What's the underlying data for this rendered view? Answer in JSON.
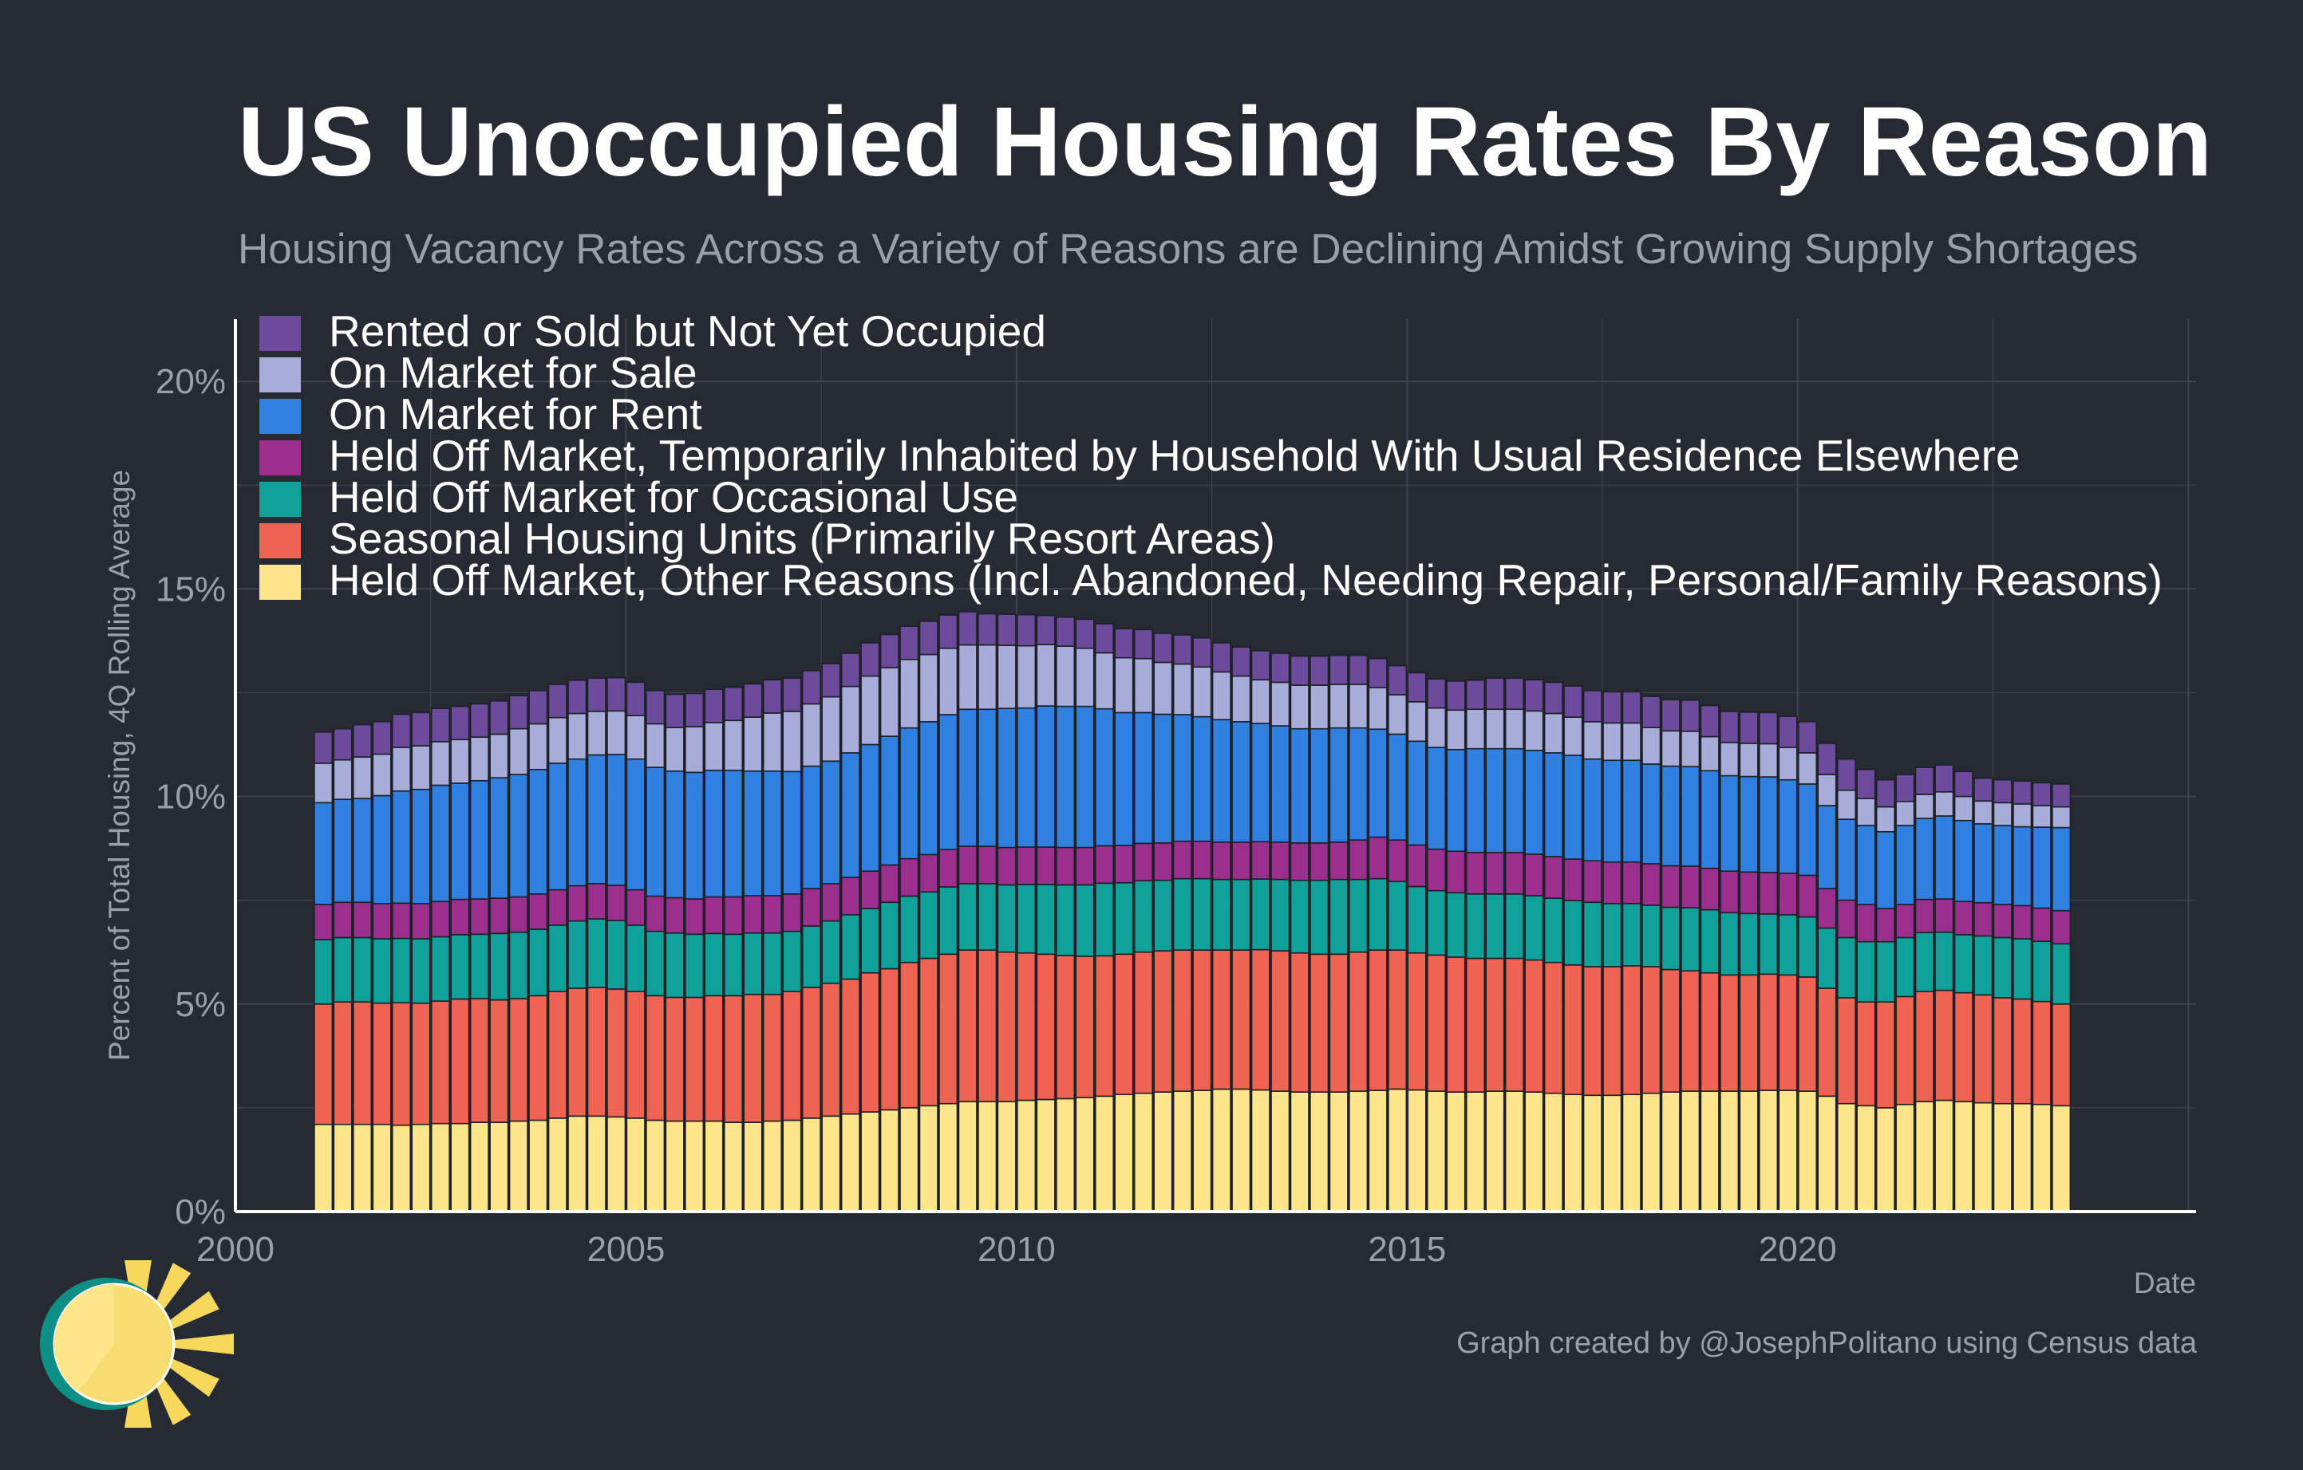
{
  "title": "US Unoccupied Housing Rates By Reason",
  "subtitle": "Housing Vacancy Rates Across a Variety of Reasons are Declining Amidst Growing Supply Shortages",
  "credit": "Graph created by @JosephPolitano using Census data",
  "colors": {
    "background": "#252a33",
    "grid": "#3e444e",
    "axis": "#ffffff",
    "muted_text": "#9aa0a8",
    "bar_outline": "#1c1f24"
  },
  "chart_data": {
    "type": "bar",
    "stacked": true,
    "frequency": "quarterly",
    "title": "US Unoccupied Housing Rates By Reason",
    "xlabel": "Date",
    "ylabel": "Percent of Total Housing, 4Q Rolling Average",
    "xlim": [
      2000,
      2025.1
    ],
    "ylim": [
      0,
      21.5
    ],
    "yticks": [
      "0%",
      "5%",
      "10%",
      "15%",
      "20%"
    ],
    "ytick_values": [
      0,
      5,
      10,
      15,
      20
    ],
    "xticks": [
      "2000",
      "2005",
      "2010",
      "2015",
      "2020"
    ],
    "xtick_values": [
      2000,
      2005,
      2010,
      2015,
      2020
    ],
    "grid": true,
    "legend_position": "top-left",
    "x_start": "2001 Q1",
    "x_end": "2023 Q2",
    "x": [
      "2001 Q1",
      "2001 Q2",
      "2001 Q3",
      "2001 Q4",
      "2002 Q1",
      "2002 Q2",
      "2002 Q3",
      "2002 Q4",
      "2003 Q1",
      "2003 Q2",
      "2003 Q3",
      "2003 Q4",
      "2004 Q1",
      "2004 Q2",
      "2004 Q3",
      "2004 Q4",
      "2005 Q1",
      "2005 Q2",
      "2005 Q3",
      "2005 Q4",
      "2006 Q1",
      "2006 Q2",
      "2006 Q3",
      "2006 Q4",
      "2007 Q1",
      "2007 Q2",
      "2007 Q3",
      "2007 Q4",
      "2008 Q1",
      "2008 Q2",
      "2008 Q3",
      "2008 Q4",
      "2009 Q1",
      "2009 Q2",
      "2009 Q3",
      "2009 Q4",
      "2010 Q1",
      "2010 Q2",
      "2010 Q3",
      "2010 Q4",
      "2011 Q1",
      "2011 Q2",
      "2011 Q3",
      "2011 Q4",
      "2012 Q1",
      "2012 Q2",
      "2012 Q3",
      "2012 Q4",
      "2013 Q1",
      "2013 Q2",
      "2013 Q3",
      "2013 Q4",
      "2014 Q1",
      "2014 Q2",
      "2014 Q3",
      "2014 Q4",
      "2015 Q1",
      "2015 Q2",
      "2015 Q3",
      "2015 Q4",
      "2016 Q1",
      "2016 Q2",
      "2016 Q3",
      "2016 Q4",
      "2017 Q1",
      "2017 Q2",
      "2017 Q3",
      "2017 Q4",
      "2018 Q1",
      "2018 Q2",
      "2018 Q3",
      "2018 Q4",
      "2019 Q1",
      "2019 Q2",
      "2019 Q3",
      "2019 Q4",
      "2020 Q1",
      "2020 Q2",
      "2020 Q3",
      "2020 Q4",
      "2021 Q1",
      "2021 Q2",
      "2021 Q3",
      "2021 Q4",
      "2022 Q1",
      "2022 Q2",
      "2022 Q3",
      "2022 Q4",
      "2023 Q1",
      "2023 Q2"
    ],
    "series": [
      {
        "name": "Held Off Market, Other Reasons (Incl. Abandoned, Needing Repair, Personal/Family Reasons)",
        "color": "#fde68a",
        "values": [
          2.1,
          2.1,
          2.1,
          2.1,
          2.08,
          2.1,
          2.12,
          2.12,
          2.15,
          2.15,
          2.18,
          2.2,
          2.25,
          2.3,
          2.3,
          2.28,
          2.25,
          2.2,
          2.18,
          2.18,
          2.18,
          2.15,
          2.15,
          2.18,
          2.2,
          2.25,
          2.3,
          2.35,
          2.4,
          2.45,
          2.5,
          2.55,
          2.6,
          2.65,
          2.65,
          2.65,
          2.68,
          2.7,
          2.72,
          2.75,
          2.78,
          2.82,
          2.85,
          2.88,
          2.9,
          2.92,
          2.95,
          2.95,
          2.93,
          2.9,
          2.88,
          2.88,
          2.88,
          2.9,
          2.92,
          2.95,
          2.93,
          2.9,
          2.88,
          2.88,
          2.9,
          2.9,
          2.88,
          2.85,
          2.82,
          2.8,
          2.8,
          2.82,
          2.85,
          2.88,
          2.9,
          2.9,
          2.9,
          2.9,
          2.92,
          2.92,
          2.9,
          2.78,
          2.6,
          2.55,
          2.5,
          2.58,
          2.65,
          2.68,
          2.65,
          2.62,
          2.6,
          2.6,
          2.58,
          2.55
        ]
      },
      {
        "name": "Seasonal Housing Units (Primarily Resort Areas)",
        "color": "#ee6352",
        "values": [
          2.9,
          2.95,
          2.95,
          2.92,
          2.95,
          2.92,
          2.95,
          3.0,
          2.98,
          2.95,
          2.95,
          3.0,
          3.05,
          3.08,
          3.1,
          3.08,
          3.05,
          3.0,
          2.98,
          2.98,
          3.02,
          3.05,
          3.08,
          3.05,
          3.1,
          3.15,
          3.2,
          3.25,
          3.35,
          3.4,
          3.5,
          3.55,
          3.6,
          3.65,
          3.65,
          3.6,
          3.55,
          3.5,
          3.45,
          3.4,
          3.38,
          3.38,
          3.4,
          3.4,
          3.4,
          3.38,
          3.35,
          3.35,
          3.38,
          3.38,
          3.35,
          3.32,
          3.32,
          3.35,
          3.38,
          3.35,
          3.3,
          3.28,
          3.25,
          3.22,
          3.2,
          3.2,
          3.18,
          3.15,
          3.12,
          3.1,
          3.1,
          3.1,
          3.05,
          2.95,
          2.9,
          2.85,
          2.8,
          2.8,
          2.8,
          2.78,
          2.75,
          2.6,
          2.55,
          2.5,
          2.55,
          2.6,
          2.65,
          2.65,
          2.62,
          2.6,
          2.55,
          2.52,
          2.48,
          2.45
        ]
      },
      {
        "name": "Held Off Market for Occasional Use",
        "color": "#10a19a",
        "values": [
          1.55,
          1.55,
          1.55,
          1.55,
          1.55,
          1.55,
          1.55,
          1.55,
          1.55,
          1.6,
          1.6,
          1.6,
          1.6,
          1.62,
          1.65,
          1.65,
          1.6,
          1.55,
          1.55,
          1.52,
          1.5,
          1.48,
          1.48,
          1.48,
          1.45,
          1.48,
          1.5,
          1.55,
          1.55,
          1.6,
          1.6,
          1.6,
          1.62,
          1.6,
          1.6,
          1.62,
          1.65,
          1.68,
          1.7,
          1.72,
          1.75,
          1.72,
          1.72,
          1.7,
          1.72,
          1.72,
          1.7,
          1.7,
          1.7,
          1.72,
          1.75,
          1.78,
          1.8,
          1.75,
          1.72,
          1.65,
          1.6,
          1.55,
          1.55,
          1.55,
          1.55,
          1.55,
          1.55,
          1.55,
          1.55,
          1.55,
          1.52,
          1.5,
          1.48,
          1.5,
          1.52,
          1.52,
          1.5,
          1.48,
          1.45,
          1.45,
          1.45,
          1.45,
          1.45,
          1.45,
          1.45,
          1.42,
          1.42,
          1.4,
          1.4,
          1.42,
          1.45,
          1.45,
          1.45,
          1.45
        ]
      },
      {
        "name": "Held Off Market, Temporarily Inhabited by Household With Usual Residence Elsewhere",
        "color": "#9b2f8d",
        "values": [
          0.85,
          0.85,
          0.85,
          0.85,
          0.85,
          0.85,
          0.85,
          0.85,
          0.85,
          0.85,
          0.85,
          0.85,
          0.85,
          0.85,
          0.85,
          0.85,
          0.85,
          0.85,
          0.85,
          0.85,
          0.88,
          0.9,
          0.9,
          0.9,
          0.9,
          0.9,
          0.9,
          0.9,
          0.9,
          0.9,
          0.9,
          0.9,
          0.9,
          0.9,
          0.9,
          0.9,
          0.9,
          0.9,
          0.9,
          0.9,
          0.9,
          0.9,
          0.9,
          0.9,
          0.9,
          0.9,
          0.9,
          0.9,
          0.9,
          0.9,
          0.9,
          0.9,
          0.9,
          0.95,
          1.0,
          1.0,
          1.0,
          1.0,
          1.0,
          1.0,
          1.0,
          1.0,
          1.0,
          1.0,
          1.0,
          1.0,
          1.0,
          1.0,
          1.0,
          1.0,
          1.0,
          1.0,
          1.0,
          1.0,
          1.0,
          1.0,
          1.0,
          0.95,
          0.9,
          0.9,
          0.8,
          0.8,
          0.8,
          0.8,
          0.8,
          0.8,
          0.8,
          0.8,
          0.8,
          0.8
        ]
      },
      {
        "name": "On Market for Rent",
        "color": "#2f80e0",
        "values": [
          2.45,
          2.48,
          2.5,
          2.6,
          2.7,
          2.75,
          2.8,
          2.8,
          2.85,
          2.9,
          2.95,
          3.0,
          3.05,
          3.05,
          3.1,
          3.15,
          3.15,
          3.1,
          3.05,
          3.05,
          3.05,
          3.05,
          3.0,
          3.0,
          2.95,
          2.95,
          2.95,
          3.0,
          3.05,
          3.1,
          3.15,
          3.2,
          3.25,
          3.3,
          3.3,
          3.35,
          3.35,
          3.4,
          3.4,
          3.4,
          3.3,
          3.2,
          3.15,
          3.1,
          3.05,
          3.0,
          2.95,
          2.9,
          2.85,
          2.8,
          2.75,
          2.75,
          2.75,
          2.7,
          2.6,
          2.55,
          2.5,
          2.45,
          2.45,
          2.5,
          2.5,
          2.5,
          2.5,
          2.5,
          2.5,
          2.45,
          2.45,
          2.45,
          2.4,
          2.4,
          2.4,
          2.35,
          2.3,
          2.3,
          2.3,
          2.25,
          2.2,
          2.0,
          1.95,
          1.9,
          1.85,
          1.9,
          1.95,
          2.0,
          1.95,
          1.9,
          1.9,
          1.9,
          1.95,
          2.0
        ]
      },
      {
        "name": "On Market for Sale",
        "color": "#a7acd9",
        "values": [
          0.95,
          0.95,
          1.0,
          1.0,
          1.05,
          1.05,
          1.05,
          1.05,
          1.05,
          1.05,
          1.1,
          1.1,
          1.1,
          1.1,
          1.05,
          1.05,
          1.05,
          1.05,
          1.05,
          1.1,
          1.15,
          1.2,
          1.3,
          1.4,
          1.45,
          1.5,
          1.55,
          1.6,
          1.65,
          1.65,
          1.65,
          1.62,
          1.6,
          1.55,
          1.55,
          1.52,
          1.5,
          1.48,
          1.45,
          1.4,
          1.35,
          1.32,
          1.3,
          1.25,
          1.22,
          1.2,
          1.15,
          1.1,
          1.05,
          1.05,
          1.05,
          1.05,
          1.05,
          1.05,
          1.0,
          0.95,
          0.95,
          0.95,
          0.95,
          0.95,
          0.95,
          0.95,
          0.95,
          0.95,
          0.92,
          0.9,
          0.9,
          0.9,
          0.88,
          0.85,
          0.85,
          0.82,
          0.8,
          0.8,
          0.8,
          0.78,
          0.75,
          0.75,
          0.7,
          0.65,
          0.6,
          0.58,
          0.58,
          0.58,
          0.58,
          0.55,
          0.55,
          0.55,
          0.52,
          0.5
        ]
      },
      {
        "name": "Rented or Sold but Not Yet Occupied",
        "color": "#6c4b9c",
        "values": [
          0.75,
          0.75,
          0.78,
          0.78,
          0.8,
          0.8,
          0.8,
          0.8,
          0.8,
          0.8,
          0.8,
          0.8,
          0.8,
          0.8,
          0.8,
          0.8,
          0.8,
          0.8,
          0.8,
          0.8,
          0.8,
          0.8,
          0.8,
          0.8,
          0.8,
          0.8,
          0.8,
          0.8,
          0.8,
          0.8,
          0.8,
          0.8,
          0.8,
          0.8,
          0.75,
          0.75,
          0.75,
          0.7,
          0.7,
          0.7,
          0.7,
          0.7,
          0.7,
          0.7,
          0.7,
          0.7,
          0.7,
          0.7,
          0.7,
          0.7,
          0.7,
          0.7,
          0.7,
          0.7,
          0.7,
          0.7,
          0.7,
          0.7,
          0.7,
          0.7,
          0.75,
          0.75,
          0.75,
          0.75,
          0.75,
          0.75,
          0.75,
          0.75,
          0.75,
          0.75,
          0.75,
          0.75,
          0.75,
          0.75,
          0.75,
          0.75,
          0.75,
          0.75,
          0.75,
          0.7,
          0.65,
          0.65,
          0.65,
          0.65,
          0.6,
          0.55,
          0.55,
          0.55,
          0.55,
          0.55
        ]
      }
    ],
    "legend_order": [
      "Rented or Sold but Not Yet Occupied",
      "On Market for Sale",
      "On Market for Rent",
      "Held Off Market, Temporarily Inhabited by Household With Usual Residence Elsewhere",
      "Held Off Market for Occasional Use",
      "Seasonal Housing Units (Primarily Resort Areas)",
      "Held Off Market, Other Reasons (Incl. Abandoned, Needing Repair, Personal/Family Reasons)"
    ]
  }
}
